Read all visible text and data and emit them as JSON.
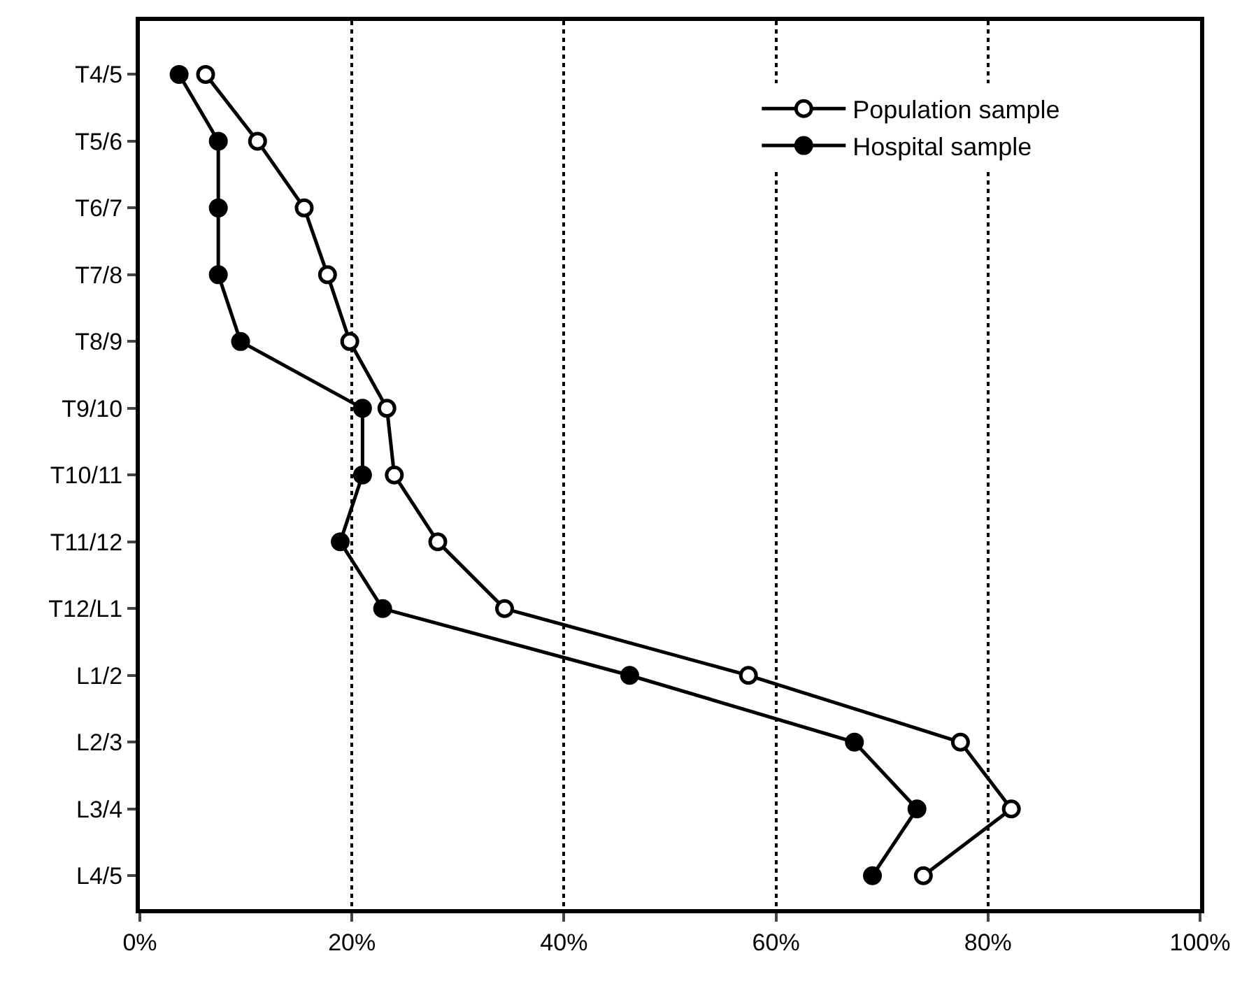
{
  "chart_data": {
    "type": "line",
    "orientation": "horizontal",
    "categories": [
      "T4/5",
      "T5/6",
      "T6/7",
      "T7/8",
      "T8/9",
      "T9/10",
      "T10/11",
      "T11/12",
      "T12/L1",
      "L1/2",
      "L2/3",
      "L3/4",
      "L4/5"
    ],
    "series": [
      {
        "name": "Population sample",
        "color": "#000000",
        "marker": "circle-open",
        "values": [
          6.2,
          11.1,
          15.5,
          17.7,
          19.8,
          23.3,
          24.0,
          28.1,
          34.4,
          57.4,
          77.4,
          82.2,
          73.9
        ]
      },
      {
        "name": "Hospital sample",
        "color": "#000000",
        "marker": "circle",
        "values": [
          3.7,
          7.4,
          7.4,
          7.4,
          9.5,
          21.0,
          21.0,
          18.9,
          22.9,
          46.2,
          67.4,
          73.3,
          69.1
        ]
      }
    ],
    "xlim": [
      0,
      100
    ],
    "xticks": [
      {
        "value": 0,
        "label": "0%"
      },
      {
        "value": 20,
        "label": "20%"
      },
      {
        "value": 40,
        "label": "40%"
      },
      {
        "value": 60,
        "label": "60%"
      },
      {
        "value": 80,
        "label": "80%"
      },
      {
        "value": 100,
        "label": "100%"
      }
    ],
    "grid": "x",
    "legend": "top right",
    "line_style": "solid"
  }
}
